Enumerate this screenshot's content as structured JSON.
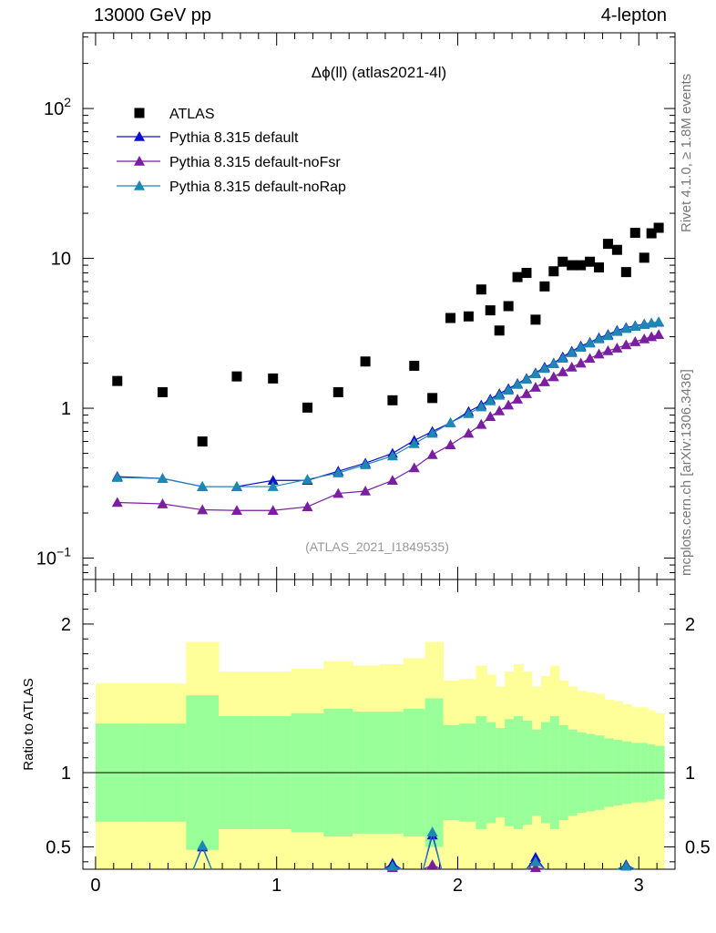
{
  "header": {
    "left": "13000 GeV pp",
    "right": "4-lepton"
  },
  "side_labels": {
    "rivet": "Rivet 4.1.0, ≥ 1.8M events",
    "mcplots": "mcplots.cern.ch [arXiv:1306.3436]"
  },
  "colors": {
    "atlas": "#000000",
    "default": "#1010c8",
    "noFsr": "#7b1fa2",
    "noRap": "#1e88b4",
    "band_inner": "#99ff99",
    "band_outer": "#ffff99"
  },
  "chart_data": [
    {
      "type": "scatter",
      "title": "Δϕ(ll) (atlas2021-4l)",
      "watermark": "(ATLAS_2021_I1849535)",
      "yscale": "log",
      "xlim": [
        -0.07,
        3.2
      ],
      "ylim": [
        0.072,
        320
      ],
      "yticks": [
        {
          "value": 0.1,
          "base": "10",
          "exp": "−1"
        },
        {
          "value": 1,
          "base": "1",
          "exp": ""
        },
        {
          "value": 10,
          "base": "10",
          "exp": ""
        },
        {
          "value": 100,
          "base": "10",
          "exp": "2"
        }
      ],
      "legend_position": "top-left",
      "series": [
        {
          "name": "ATLAS",
          "key": "atlas",
          "marker": "square",
          "x": [
            0.12,
            0.37,
            0.59,
            0.78,
            0.98,
            1.17,
            1.34,
            1.49,
            1.64,
            1.76,
            1.86,
            1.96,
            2.06,
            2.13,
            2.18,
            2.23,
            2.28,
            2.33,
            2.38,
            2.43,
            2.48,
            2.53,
            2.58,
            2.63,
            2.68,
            2.73,
            2.78,
            2.83,
            2.88,
            2.93,
            2.98,
            3.03,
            3.07,
            3.11
          ],
          "y": [
            1.52,
            1.28,
            0.6,
            1.63,
            1.58,
            1.01,
            1.28,
            2.05,
            1.13,
            1.92,
            1.17,
            4.0,
            4.1,
            6.2,
            4.5,
            3.3,
            4.8,
            7.5,
            8.0,
            3.9,
            6.5,
            8.2,
            9.5,
            9.0,
            9.0,
            9.5,
            8.7,
            12.5,
            11.4,
            8.1,
            14.8,
            10.1,
            14.7,
            16.0
          ]
        },
        {
          "name": "Pythia 8.315 default",
          "key": "default",
          "marker": "triangle",
          "x": [
            0.12,
            0.37,
            0.59,
            0.78,
            0.98,
            1.17,
            1.34,
            1.49,
            1.64,
            1.76,
            1.86,
            1.96,
            2.06,
            2.13,
            2.18,
            2.23,
            2.28,
            2.33,
            2.38,
            2.43,
            2.48,
            2.53,
            2.58,
            2.63,
            2.68,
            2.73,
            2.78,
            2.83,
            2.88,
            2.93,
            2.98,
            3.03,
            3.07,
            3.11
          ],
          "y": [
            0.35,
            0.34,
            0.3,
            0.3,
            0.33,
            0.33,
            0.38,
            0.43,
            0.5,
            0.61,
            0.7,
            0.8,
            0.95,
            1.05,
            1.15,
            1.25,
            1.35,
            1.46,
            1.58,
            1.72,
            1.88,
            2.0,
            2.2,
            2.4,
            2.6,
            2.75,
            2.95,
            3.1,
            3.3,
            3.45,
            3.55,
            3.65,
            3.7,
            3.75
          ]
        },
        {
          "name": "Pythia 8.315 default-noFsr",
          "key": "noFsr",
          "marker": "triangle",
          "x": [
            0.12,
            0.37,
            0.59,
            0.78,
            0.98,
            1.17,
            1.34,
            1.49,
            1.64,
            1.76,
            1.86,
            1.96,
            2.06,
            2.13,
            2.18,
            2.23,
            2.28,
            2.33,
            2.38,
            2.43,
            2.48,
            2.53,
            2.58,
            2.63,
            2.68,
            2.73,
            2.78,
            2.83,
            2.88,
            2.93,
            2.98,
            3.03,
            3.07,
            3.11
          ],
          "y": [
            0.235,
            0.23,
            0.21,
            0.208,
            0.208,
            0.22,
            0.27,
            0.28,
            0.33,
            0.4,
            0.49,
            0.57,
            0.68,
            0.78,
            0.88,
            0.96,
            1.05,
            1.15,
            1.25,
            1.38,
            1.5,
            1.62,
            1.75,
            1.88,
            2.0,
            2.15,
            2.3,
            2.42,
            2.52,
            2.65,
            2.78,
            2.9,
            3.0,
            3.1
          ]
        },
        {
          "name": "Pythia 8.315 default-noRap",
          "key": "noRap",
          "marker": "triangle",
          "x": [
            0.12,
            0.37,
            0.59,
            0.78,
            0.98,
            1.17,
            1.34,
            1.49,
            1.64,
            1.76,
            1.86,
            1.96,
            2.06,
            2.13,
            2.18,
            2.23,
            2.28,
            2.33,
            2.38,
            2.43,
            2.48,
            2.53,
            2.58,
            2.63,
            2.68,
            2.73,
            2.78,
            2.83,
            2.88,
            2.93,
            2.98,
            3.03,
            3.07,
            3.11
          ],
          "y": [
            0.345,
            0.34,
            0.3,
            0.3,
            0.3,
            0.335,
            0.37,
            0.42,
            0.48,
            0.58,
            0.68,
            0.8,
            0.92,
            1.02,
            1.12,
            1.22,
            1.32,
            1.44,
            1.56,
            1.7,
            1.84,
            1.98,
            2.15,
            2.35,
            2.55,
            2.72,
            2.9,
            3.05,
            3.25,
            3.4,
            3.52,
            3.62,
            3.7,
            3.78
          ]
        }
      ]
    },
    {
      "type": "area",
      "ylabel": "Ratio to ATLAS",
      "xlim": [
        -0.07,
        3.2
      ],
      "ylim": [
        0.35,
        2.3
      ],
      "xticks": [
        0,
        1,
        2,
        3
      ],
      "yticks": [
        0.5,
        1,
        2
      ],
      "reference_line": 1,
      "bands": {
        "x_edges": [
          0.0,
          0.25,
          0.5,
          0.68,
          0.88,
          1.08,
          1.26,
          1.42,
          1.57,
          1.7,
          1.82,
          1.92,
          2.01,
          2.1,
          2.16,
          2.21,
          2.26,
          2.31,
          2.36,
          2.41,
          2.46,
          2.51,
          2.56,
          2.61,
          2.66,
          2.71,
          2.76,
          2.81,
          2.86,
          2.91,
          2.96,
          3.01,
          3.05,
          3.09,
          3.14
        ],
        "outer_upper": [
          1.6,
          1.6,
          1.88,
          1.68,
          1.68,
          1.7,
          1.75,
          1.72,
          1.73,
          1.77,
          1.88,
          1.62,
          1.63,
          1.72,
          1.66,
          1.58,
          1.68,
          1.73,
          1.68,
          1.58,
          1.65,
          1.72,
          1.62,
          1.58,
          1.55,
          1.54,
          1.53,
          1.49,
          1.48,
          1.46,
          1.44,
          1.44,
          1.42,
          1.4
        ],
        "outer_lower": [
          0.35,
          0.35,
          0.35,
          0.35,
          0.35,
          0.35,
          0.35,
          0.35,
          0.35,
          0.35,
          0.35,
          0.35,
          0.35,
          0.35,
          0.35,
          0.35,
          0.35,
          0.35,
          0.35,
          0.35,
          0.35,
          0.35,
          0.35,
          0.35,
          0.35,
          0.35,
          0.35,
          0.35,
          0.35,
          0.35,
          0.35,
          0.35,
          0.35,
          0.35
        ],
        "inner_upper": [
          1.33,
          1.33,
          1.52,
          1.38,
          1.38,
          1.4,
          1.43,
          1.41,
          1.41,
          1.43,
          1.5,
          1.32,
          1.33,
          1.38,
          1.34,
          1.3,
          1.36,
          1.38,
          1.35,
          1.29,
          1.34,
          1.38,
          1.32,
          1.29,
          1.27,
          1.26,
          1.25,
          1.23,
          1.22,
          1.21,
          1.2,
          1.2,
          1.19,
          1.18
        ],
        "inner_lower": [
          0.67,
          0.67,
          0.48,
          0.62,
          0.62,
          0.6,
          0.57,
          0.59,
          0.59,
          0.57,
          0.5,
          0.68,
          0.67,
          0.62,
          0.66,
          0.7,
          0.64,
          0.62,
          0.65,
          0.71,
          0.66,
          0.62,
          0.68,
          0.71,
          0.73,
          0.74,
          0.75,
          0.77,
          0.78,
          0.79,
          0.8,
          0.8,
          0.81,
          0.82
        ]
      },
      "ratio_markers": [
        {
          "key": "default",
          "points": [
            [
              0.59,
              0.5
            ],
            [
              1.64,
              0.39
            ],
            [
              1.86,
              0.58
            ],
            [
              2.43,
              0.43
            ],
            [
              2.93,
              0.38
            ]
          ]
        },
        {
          "key": "noFsr",
          "points": [
            [
              1.64,
              0.36
            ],
            [
              1.86,
              0.38
            ],
            [
              2.43,
              0.36
            ]
          ]
        },
        {
          "key": "noRap",
          "points": [
            [
              0.59,
              0.51
            ],
            [
              1.64,
              0.37
            ],
            [
              1.86,
              0.6
            ],
            [
              2.43,
              0.4
            ],
            [
              2.93,
              0.37
            ]
          ]
        }
      ]
    }
  ]
}
